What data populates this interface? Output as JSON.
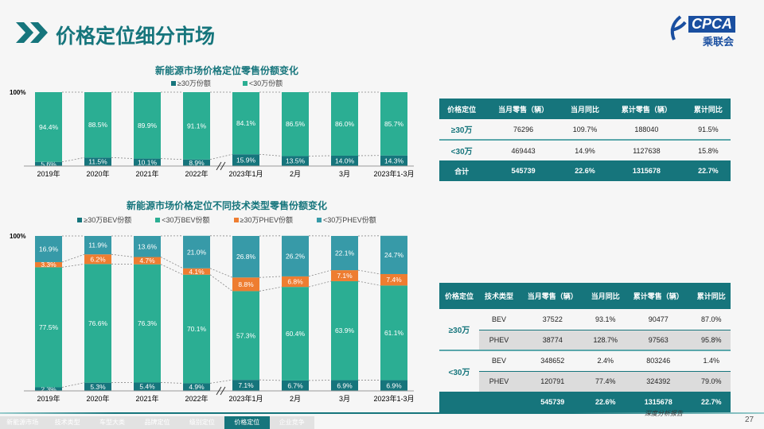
{
  "page": {
    "title": "价格定位细分市场",
    "number": "27",
    "footer_slogan": "深度分析报告"
  },
  "logo": {
    "text": "CPCA",
    "sub": "乘联会"
  },
  "nav": {
    "tabs": [
      "新能源市场",
      "技术类型",
      "车型大类",
      "品牌定位",
      "级别定位",
      "价格定位",
      "企业竞争"
    ],
    "active": 5
  },
  "colors": {
    "dark_teal": "#16757c",
    "green": "#2bae93",
    "orange": "#ee7d31",
    "blue_teal": "#379aa8"
  },
  "chart_data": [
    {
      "type": "bar",
      "stacked": true,
      "title": "新能源市场价格定位零售份额变化",
      "ytick": "100%",
      "categories": [
        "2019年",
        "2020年",
        "2021年",
        "2022年",
        "2023年1月",
        "2月",
        "3月",
        "2023年1-3月"
      ],
      "series": [
        {
          "name": "≥30万份额",
          "values": [
            5.6,
            11.5,
            10.1,
            8.9,
            15.9,
            13.5,
            14.0,
            14.3
          ]
        },
        {
          "name": "<30万份额",
          "values": [
            94.4,
            88.5,
            89.9,
            91.1,
            84.1,
            86.5,
            86.0,
            85.7
          ]
        }
      ]
    },
    {
      "type": "bar",
      "stacked": true,
      "title": "新能源市场价格定位不同技术类型零售份额变化",
      "ytick": "100%",
      "categories": [
        "2019年",
        "2020年",
        "2021年",
        "2022年",
        "2023年1月",
        "2月",
        "3月",
        "2023年1-3月"
      ],
      "series": [
        {
          "name": "≥30万BEV份额",
          "values": [
            2.3,
            5.3,
            5.4,
            4.9,
            7.1,
            6.7,
            6.9,
            6.9
          ]
        },
        {
          "name": "<30万BEV份额",
          "values": [
            77.5,
            76.6,
            76.3,
            70.1,
            57.3,
            60.4,
            63.9,
            61.1
          ]
        },
        {
          "name": "≥30万PHEV份额",
          "values": [
            3.3,
            6.2,
            4.7,
            4.1,
            8.8,
            6.8,
            7.1,
            7.4
          ]
        },
        {
          "name": "<30万PHEV份额",
          "values": [
            16.9,
            11.9,
            13.6,
            21.0,
            26.8,
            26.2,
            22.1,
            24.7
          ]
        }
      ]
    }
  ],
  "table1": {
    "headers": [
      "价格定位",
      "当月零售（辆）",
      "当月同比",
      "累计零售（辆）",
      "累计同比"
    ],
    "rows": [
      [
        "≥30万",
        "76296",
        "109.7%",
        "188040",
        "91.5%"
      ],
      [
        "<30万",
        "469443",
        "14.9%",
        "1127638",
        "15.8%"
      ],
      [
        "合计",
        "545739",
        "22.6%",
        "1315678",
        "22.7%"
      ]
    ]
  },
  "table2": {
    "headers": [
      "价格定位",
      "技术类型",
      "当月零售（辆）",
      "当月同比",
      "累计零售（辆）",
      "累计同比"
    ],
    "groups": [
      "≥30万",
      "<30万"
    ],
    "rows": [
      [
        "BEV",
        "37522",
        "93.1%",
        "90477",
        "87.0%"
      ],
      [
        "PHEV",
        "38774",
        "128.7%",
        "97563",
        "95.8%"
      ],
      [
        "BEV",
        "348652",
        "2.4%",
        "803246",
        "1.4%"
      ],
      [
        "PHEV",
        "120791",
        "77.4%",
        "324392",
        "79.0%"
      ]
    ],
    "total": [
      "545739",
      "22.6%",
      "1315678",
      "22.7%"
    ]
  }
}
